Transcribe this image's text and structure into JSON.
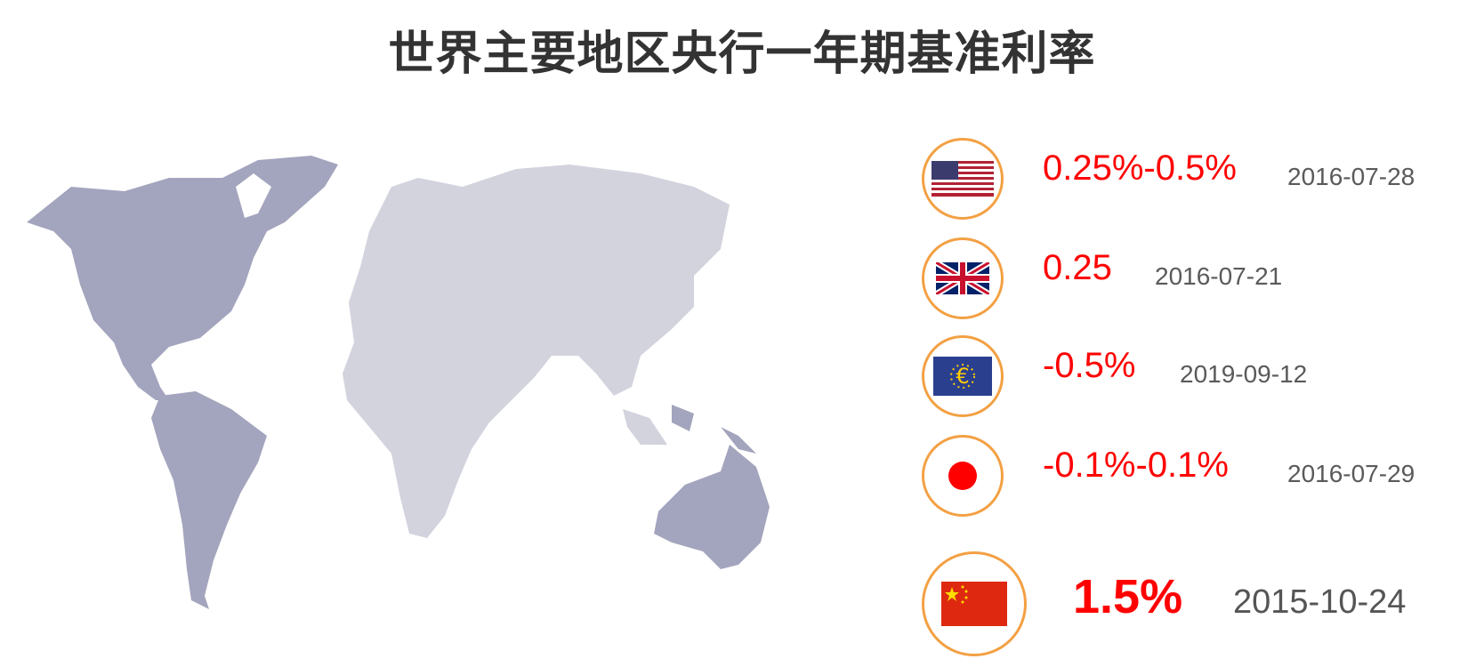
{
  "title": "世界主要地区央行一年期基准利率",
  "colors": {
    "highlight_land": "#a3a4bd",
    "other_land": "#d2d3dd",
    "rate": "#ff0000",
    "date": "#5a5a5a",
    "circle_border": "#f3a043"
  },
  "rates": [
    {
      "flag": "us-flag-icon",
      "rate": "0.25%-0.5%",
      "date": "2016-07-28"
    },
    {
      "flag": "uk-flag-icon",
      "rate": "0.25",
      "date": "2016-07-21"
    },
    {
      "flag": "eu-flag-icon",
      "rate": "-0.5%",
      "date": "2019-09-12"
    },
    {
      "flag": "japan-flag-icon",
      "rate": "-0.1%-0.1%",
      "date": "2016-07-29"
    },
    {
      "flag": "china-flag-icon",
      "rate": "1.5%",
      "date": "2015-10-24"
    }
  ]
}
